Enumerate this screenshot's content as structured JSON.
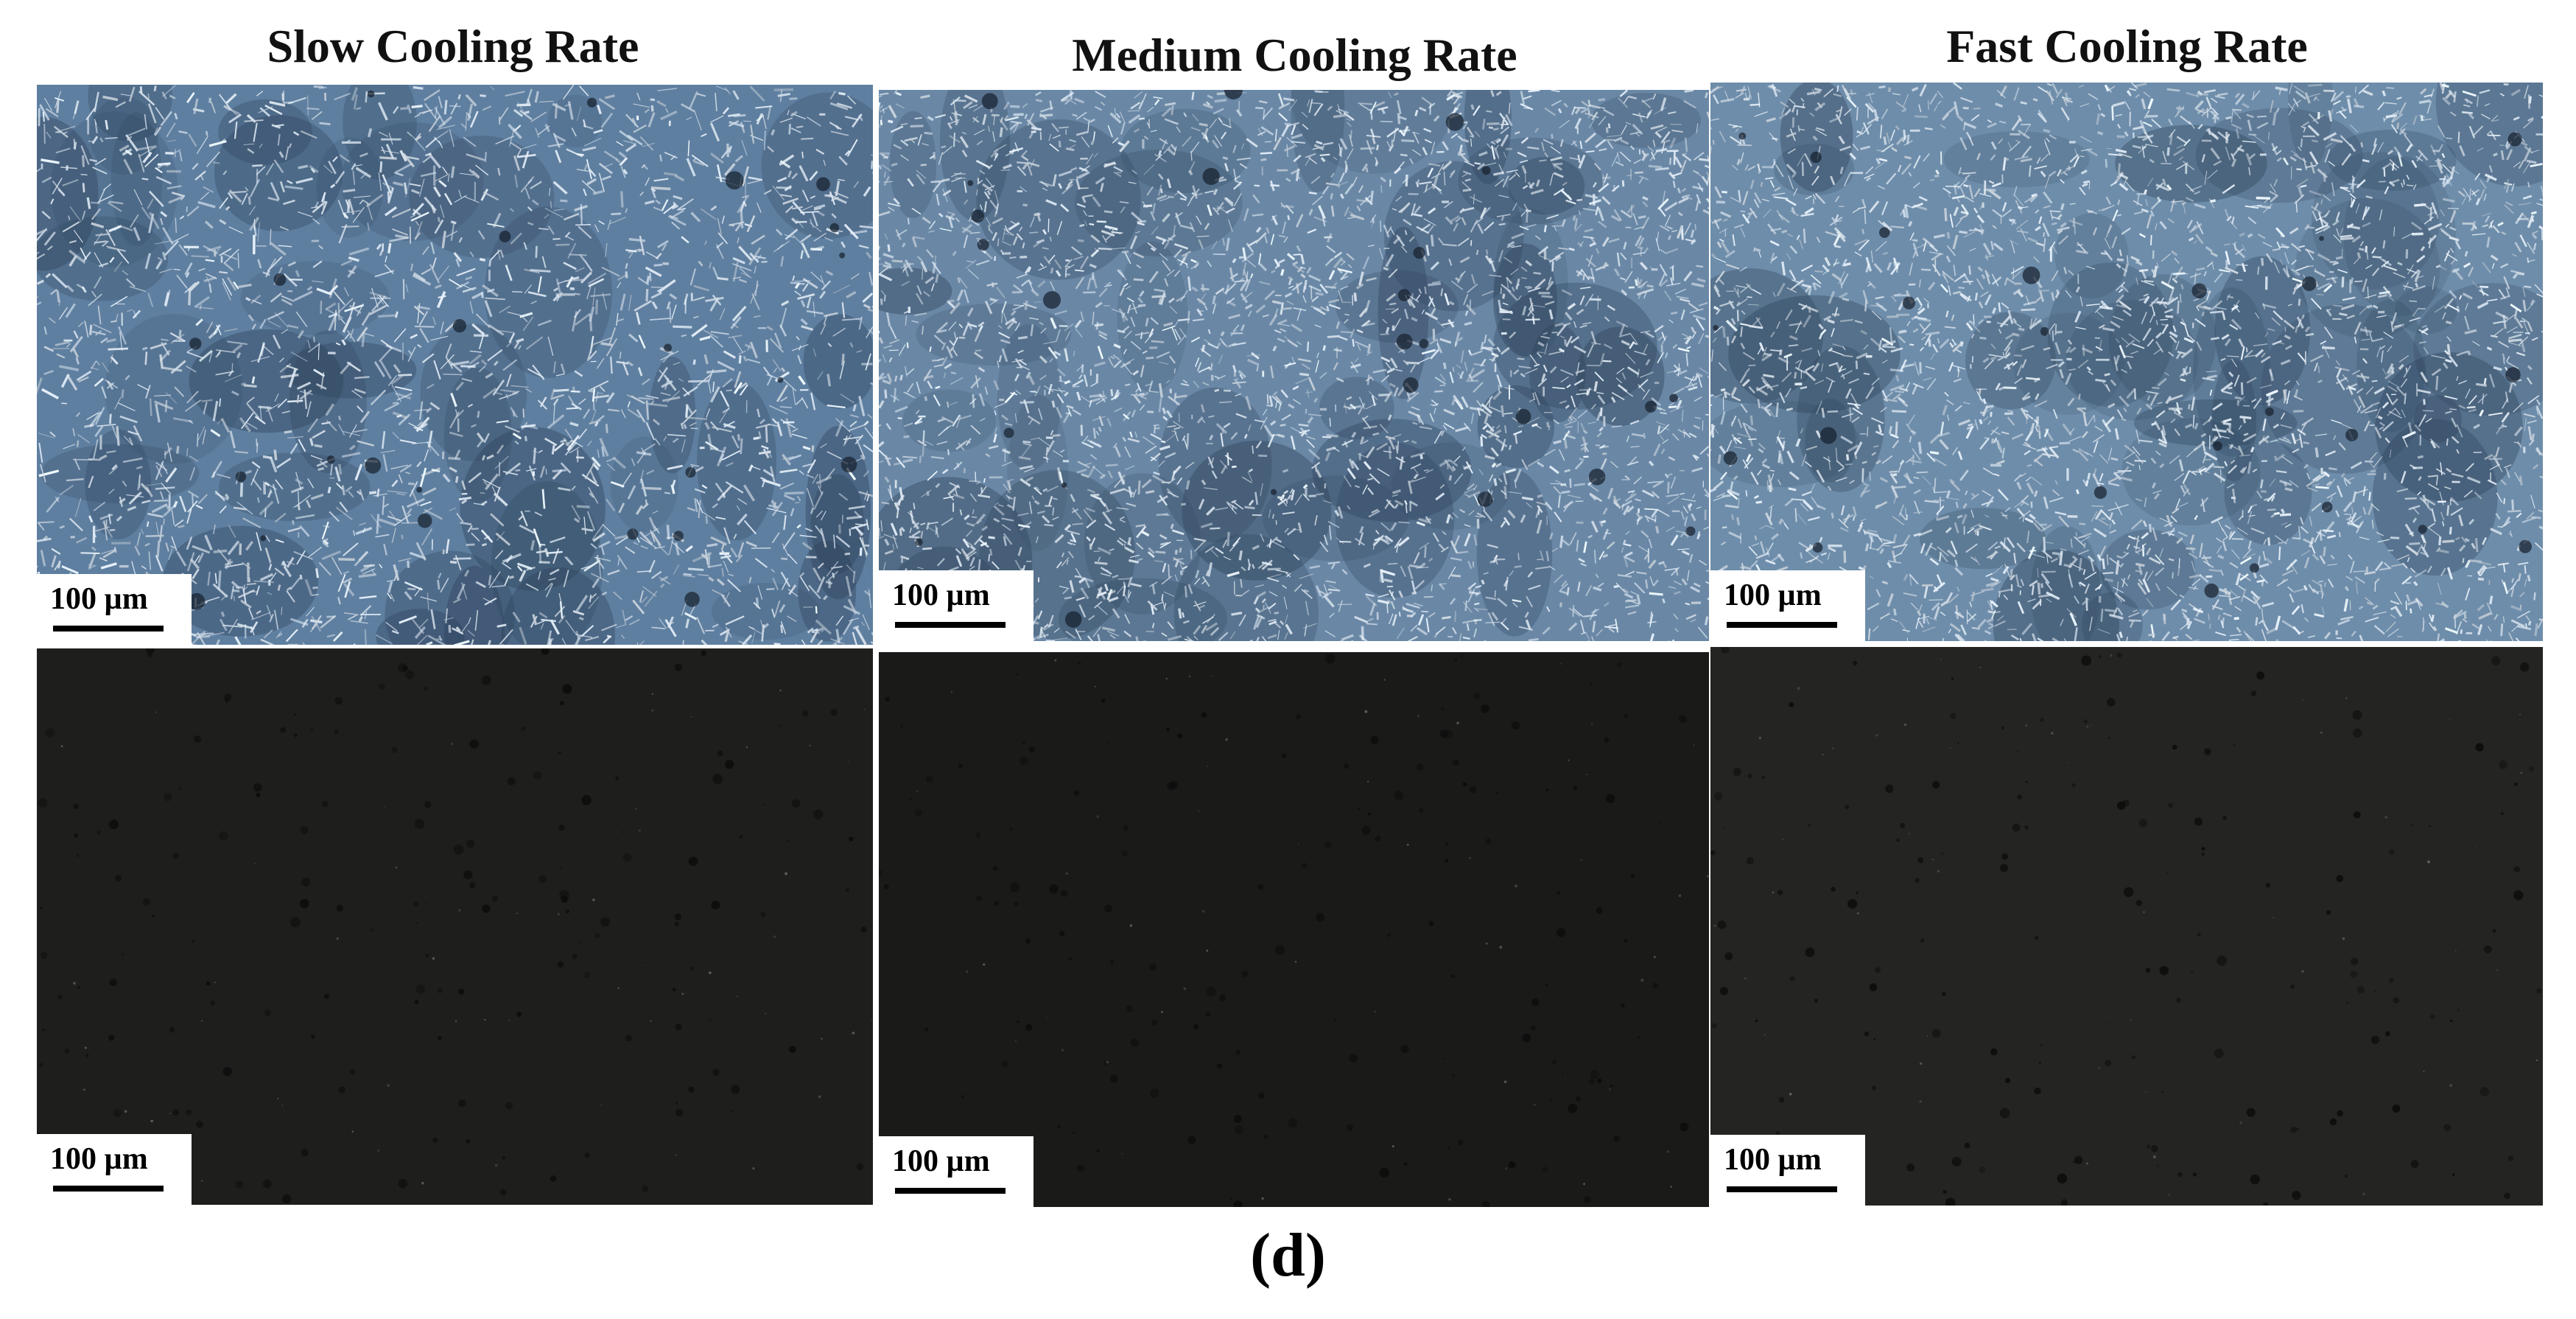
{
  "columns": [
    {
      "title": "Slow Cooling Rate"
    },
    {
      "title": "Medium Cooling Rate"
    },
    {
      "title": "Fast Cooling Rate"
    }
  ],
  "panels": [
    {
      "row": "top",
      "column": "slow",
      "scale_label": "100 µm",
      "tone": "bright-crystalline",
      "base_color": "#5f7fa0"
    },
    {
      "row": "top",
      "column": "medium",
      "scale_label": "100 µm",
      "tone": "bright-crystalline",
      "base_color": "#6a88a6"
    },
    {
      "row": "top",
      "column": "fast",
      "scale_label": "100 µm",
      "tone": "bright-crystalline",
      "base_color": "#6e8daa"
    },
    {
      "row": "bottom",
      "column": "slow",
      "scale_label": "100 µm",
      "tone": "dark",
      "base_color": "#1e1e1c"
    },
    {
      "row": "bottom",
      "column": "medium",
      "scale_label": "100 µm",
      "tone": "dark",
      "base_color": "#1a1a18"
    },
    {
      "row": "bottom",
      "column": "fast",
      "scale_label": "100 µm",
      "tone": "dark",
      "base_color": "#242422"
    }
  ],
  "caption": "(d)"
}
